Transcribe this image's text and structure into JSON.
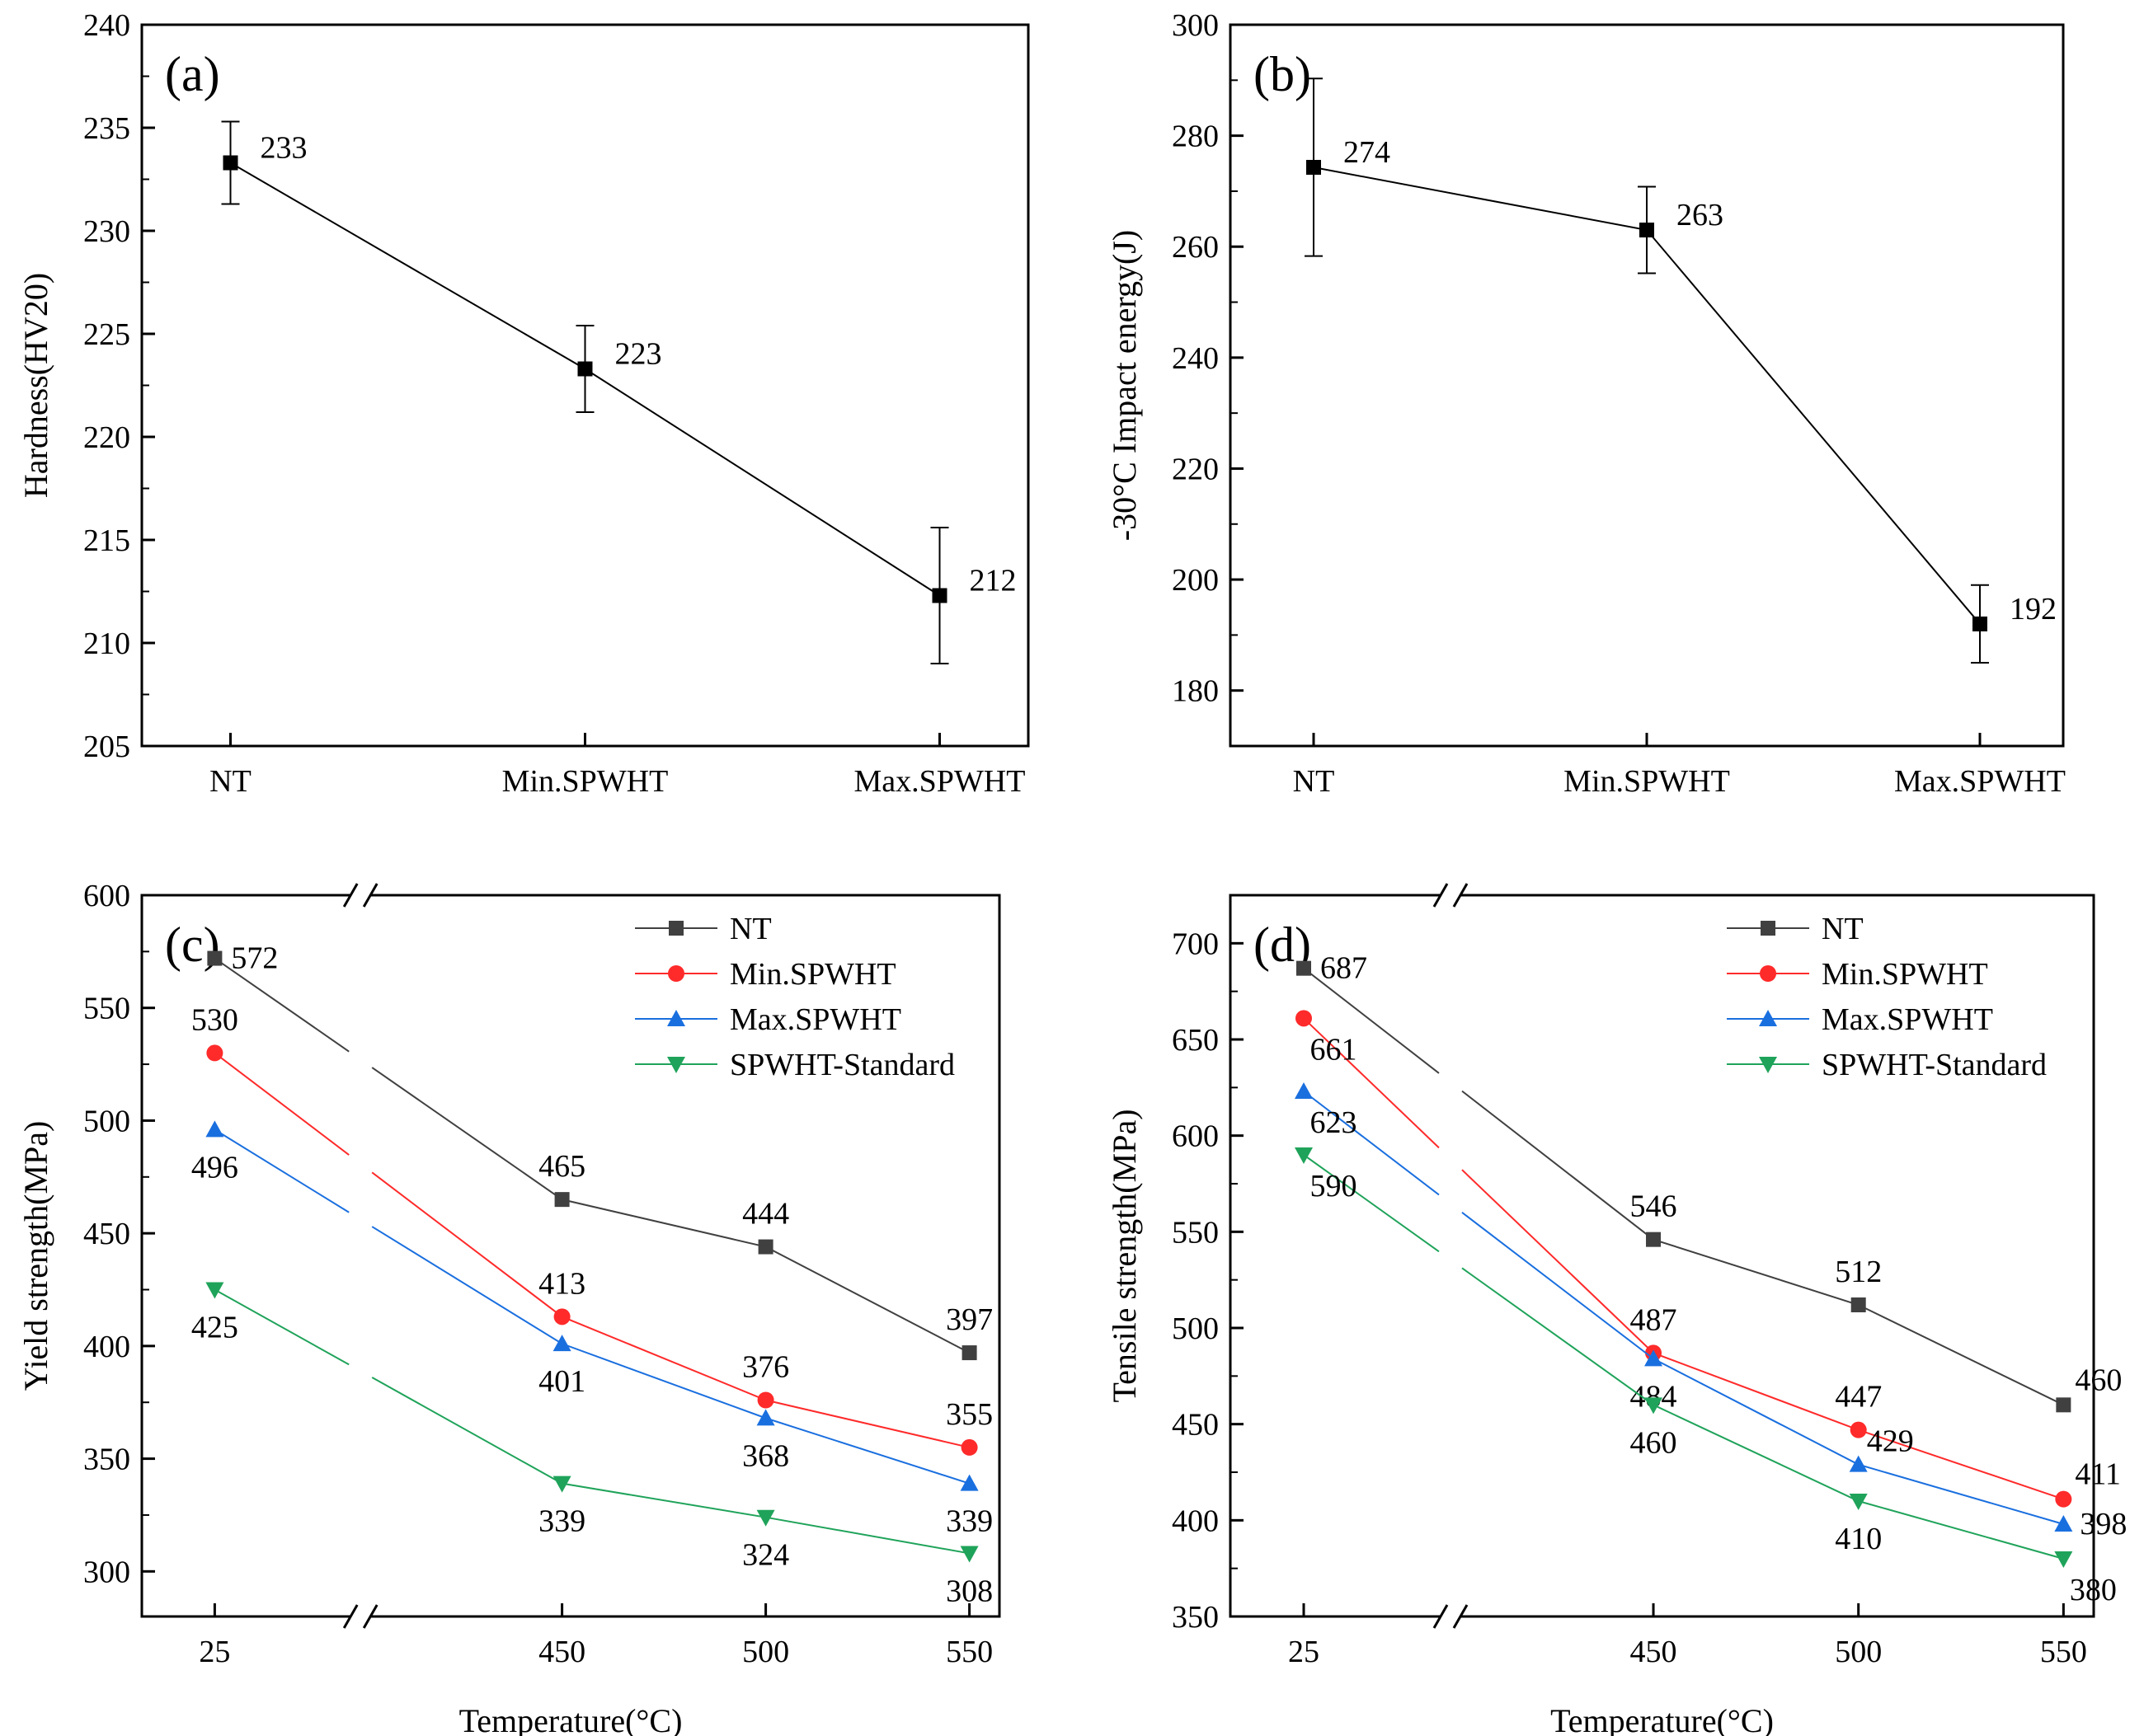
{
  "chart_data": [
    {
      "id": "a",
      "type": "line",
      "panel_label": "(a)",
      "title": "",
      "xlabel": "",
      "ylabel": "Hardness(HV20)",
      "ylim": [
        205,
        240
      ],
      "yticks": [
        205,
        210,
        215,
        220,
        225,
        230,
        235,
        240
      ],
      "categories": [
        "NT",
        "Min.SPWHT",
        "Max.SPWHT"
      ],
      "series": [
        {
          "name": "Hardness",
          "color": "#000000",
          "marker": "square",
          "values": [
            233.3,
            223.3,
            212.3
          ],
          "errors": [
            2.0,
            2.1,
            3.3
          ],
          "labels": [
            "233",
            "223",
            "212"
          ]
        }
      ]
    },
    {
      "id": "b",
      "type": "line",
      "panel_label": "(b)",
      "title": "",
      "xlabel": "",
      "ylabel": "-30°C Impact energy(J)",
      "ylim": [
        170,
        300
      ],
      "yticks": [
        180,
        200,
        220,
        240,
        260,
        280,
        300
      ],
      "categories": [
        "NT",
        "Min.SPWHT",
        "Max.SPWHT"
      ],
      "series": [
        {
          "name": "Impact energy",
          "color": "#000000",
          "marker": "square",
          "values": [
            274.3,
            263.0,
            192.0
          ],
          "errors": [
            16.0,
            7.8,
            7.0
          ],
          "labels": [
            "274",
            "263",
            "192"
          ]
        }
      ]
    },
    {
      "id": "c",
      "type": "line",
      "panel_label": "(c)",
      "title": "",
      "xlabel": "Temperature(°C)",
      "ylabel": "Yield strength(MPa)",
      "ylim": [
        280,
        600
      ],
      "yticks": [
        300,
        350,
        400,
        450,
        500,
        550,
        600
      ],
      "x": [
        25,
        450,
        500,
        550
      ],
      "xtick_labels": [
        "25",
        "450",
        "500",
        "550"
      ],
      "axis_break": "between 25 and 450",
      "legend_position": "top-right",
      "series": [
        {
          "name": "NT",
          "color": "#404040",
          "marker": "square",
          "values": [
            572,
            465,
            444,
            397
          ],
          "labels": [
            "572",
            "465",
            "444",
            "397"
          ],
          "label_pos": [
            "right",
            "above",
            "above",
            "above"
          ]
        },
        {
          "name": "Min.SPWHT",
          "color": "#ff2a2a",
          "marker": "circle",
          "values": [
            530,
            413,
            376,
            355
          ],
          "labels": [
            "530",
            "413",
            "376",
            "355"
          ],
          "label_pos": [
            "above",
            "above",
            "above",
            "above"
          ]
        },
        {
          "name": "Max.SPWHT",
          "color": "#1a6fdf",
          "marker": "triangle-up",
          "values": [
            496,
            401,
            368,
            339
          ],
          "labels": [
            "496",
            "401",
            "368",
            "339"
          ],
          "label_pos": [
            "below",
            "below",
            "below",
            "below"
          ]
        },
        {
          "name": "SPWHT-Standard",
          "color": "#1fa35a",
          "marker": "triangle-down",
          "values": [
            425,
            339,
            324,
            308
          ],
          "labels": [
            "425",
            "339",
            "324",
            "308"
          ],
          "label_pos": [
            "below",
            "below",
            "below",
            "below"
          ]
        }
      ]
    },
    {
      "id": "d",
      "type": "line",
      "panel_label": "(d)",
      "title": "",
      "xlabel": "Temperature(°C)",
      "ylabel": "Tensile strength(MPa)",
      "ylim": [
        350,
        725
      ],
      "yticks": [
        350,
        400,
        450,
        500,
        550,
        600,
        650,
        700
      ],
      "x": [
        25,
        450,
        500,
        550
      ],
      "xtick_labels": [
        "25",
        "450",
        "500",
        "550"
      ],
      "axis_break": "between 25 and 450",
      "legend_position": "top-right",
      "series": [
        {
          "name": "NT",
          "color": "#404040",
          "marker": "square",
          "values": [
            687,
            546,
            512,
            460
          ],
          "labels": [
            "687",
            "546",
            "512",
            "460"
          ],
          "label_pos": [
            "right",
            "above",
            "above",
            "right-above"
          ]
        },
        {
          "name": "Min.SPWHT",
          "color": "#ff2a2a",
          "marker": "circle",
          "values": [
            661,
            487,
            447,
            411
          ],
          "labels": [
            "661",
            "487",
            "447",
            "411"
          ],
          "label_pos": [
            "below-right",
            "above",
            "above",
            "right-above"
          ]
        },
        {
          "name": "Max.SPWHT",
          "color": "#1a6fdf",
          "marker": "triangle-up",
          "values": [
            623,
            484,
            429,
            398
          ],
          "labels": [
            "623",
            "484",
            "429",
            "398"
          ],
          "label_pos": [
            "below-right",
            "below",
            "above-right",
            "right"
          ]
        },
        {
          "name": "SPWHT-Standard",
          "color": "#1fa35a",
          "marker": "triangle-down",
          "values": [
            590,
            460,
            410,
            380
          ],
          "labels": [
            "590",
            "460",
            "410",
            "380"
          ],
          "label_pos": [
            "below-right",
            "below",
            "below",
            "below-right"
          ]
        }
      ]
    }
  ]
}
